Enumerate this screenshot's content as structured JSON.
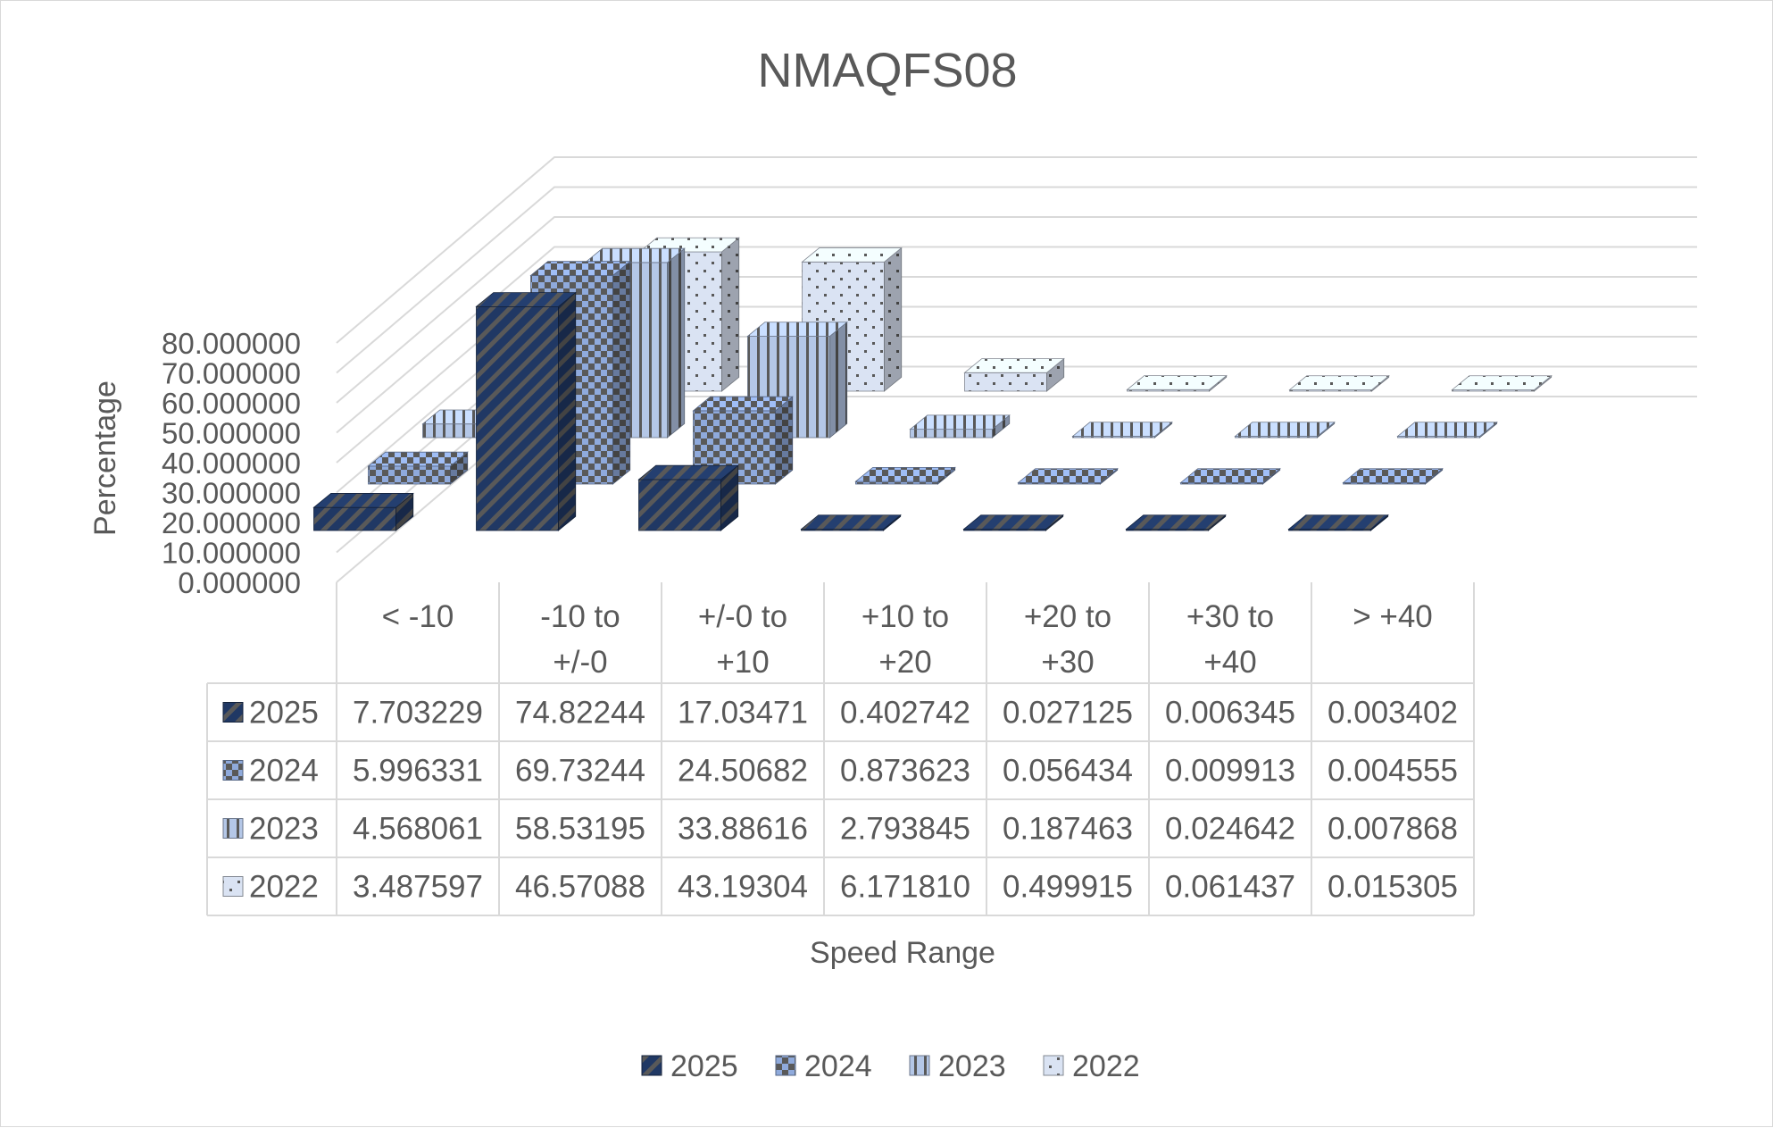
{
  "chart_data": {
    "type": "bar",
    "title": "NMAQFS08",
    "xlabel": "Speed Range",
    "ylabel": "Percentage",
    "ylim": [
      0,
      80
    ],
    "ytick_step": 10,
    "y_ticks": [
      "0.000000",
      "10.000000",
      "20.000000",
      "30.000000",
      "40.000000",
      "50.000000",
      "60.000000",
      "70.000000",
      "80.000000"
    ],
    "categories": [
      [
        "< -10"
      ],
      [
        "-10 to",
        "+/-0"
      ],
      [
        "+/-0 to",
        "+10"
      ],
      [
        "+10 to",
        "+20"
      ],
      [
        "+20 to",
        "+30"
      ],
      [
        "+30 to",
        "+40"
      ],
      [
        "> +40"
      ]
    ],
    "series": [
      {
        "name": "2025",
        "values": [
          7.703229,
          74.82244,
          17.03471,
          0.402742,
          0.027125,
          0.006345,
          0.003402
        ],
        "labels": [
          "7.703229",
          "74.82244",
          "17.03471",
          "0.402742",
          "0.027125",
          "0.006345",
          "0.003402"
        ],
        "pattern": "diagonal",
        "color": "#203864",
        "pattern_color": "#595959"
      },
      {
        "name": "2024",
        "values": [
          5.996331,
          69.73244,
          24.50682,
          0.873623,
          0.056434,
          0.009913,
          0.004555
        ],
        "labels": [
          "5.996331",
          "69.73244",
          "24.50682",
          "0.873623",
          "0.056434",
          "0.009913",
          "0.004555"
        ],
        "pattern": "checker",
        "color": "#8faadc",
        "pattern_color": "#595959"
      },
      {
        "name": "2023",
        "values": [
          4.568061,
          58.53195,
          33.88616,
          2.793845,
          0.187463,
          0.024642,
          0.007868
        ],
        "labels": [
          "4.568061",
          "58.53195",
          "33.88616",
          "2.793845",
          "0.187463",
          "0.024642",
          "0.007868"
        ],
        "pattern": "vertical",
        "color": "#b4c7e7",
        "pattern_color": "#595959"
      },
      {
        "name": "2022",
        "values": [
          3.487597,
          46.57088,
          43.19304,
          6.17181,
          0.499915,
          0.061437,
          0.015305
        ],
        "labels": [
          "3.487597",
          "46.57088",
          "43.19304",
          "6.171810",
          "0.499915",
          "0.061437",
          "0.015305"
        ],
        "pattern": "dots",
        "color": "#dae3f3",
        "pattern_color": "#595959"
      }
    ],
    "legend_position": "bottom",
    "data_table": true,
    "grid": true,
    "projection": "3d"
  }
}
